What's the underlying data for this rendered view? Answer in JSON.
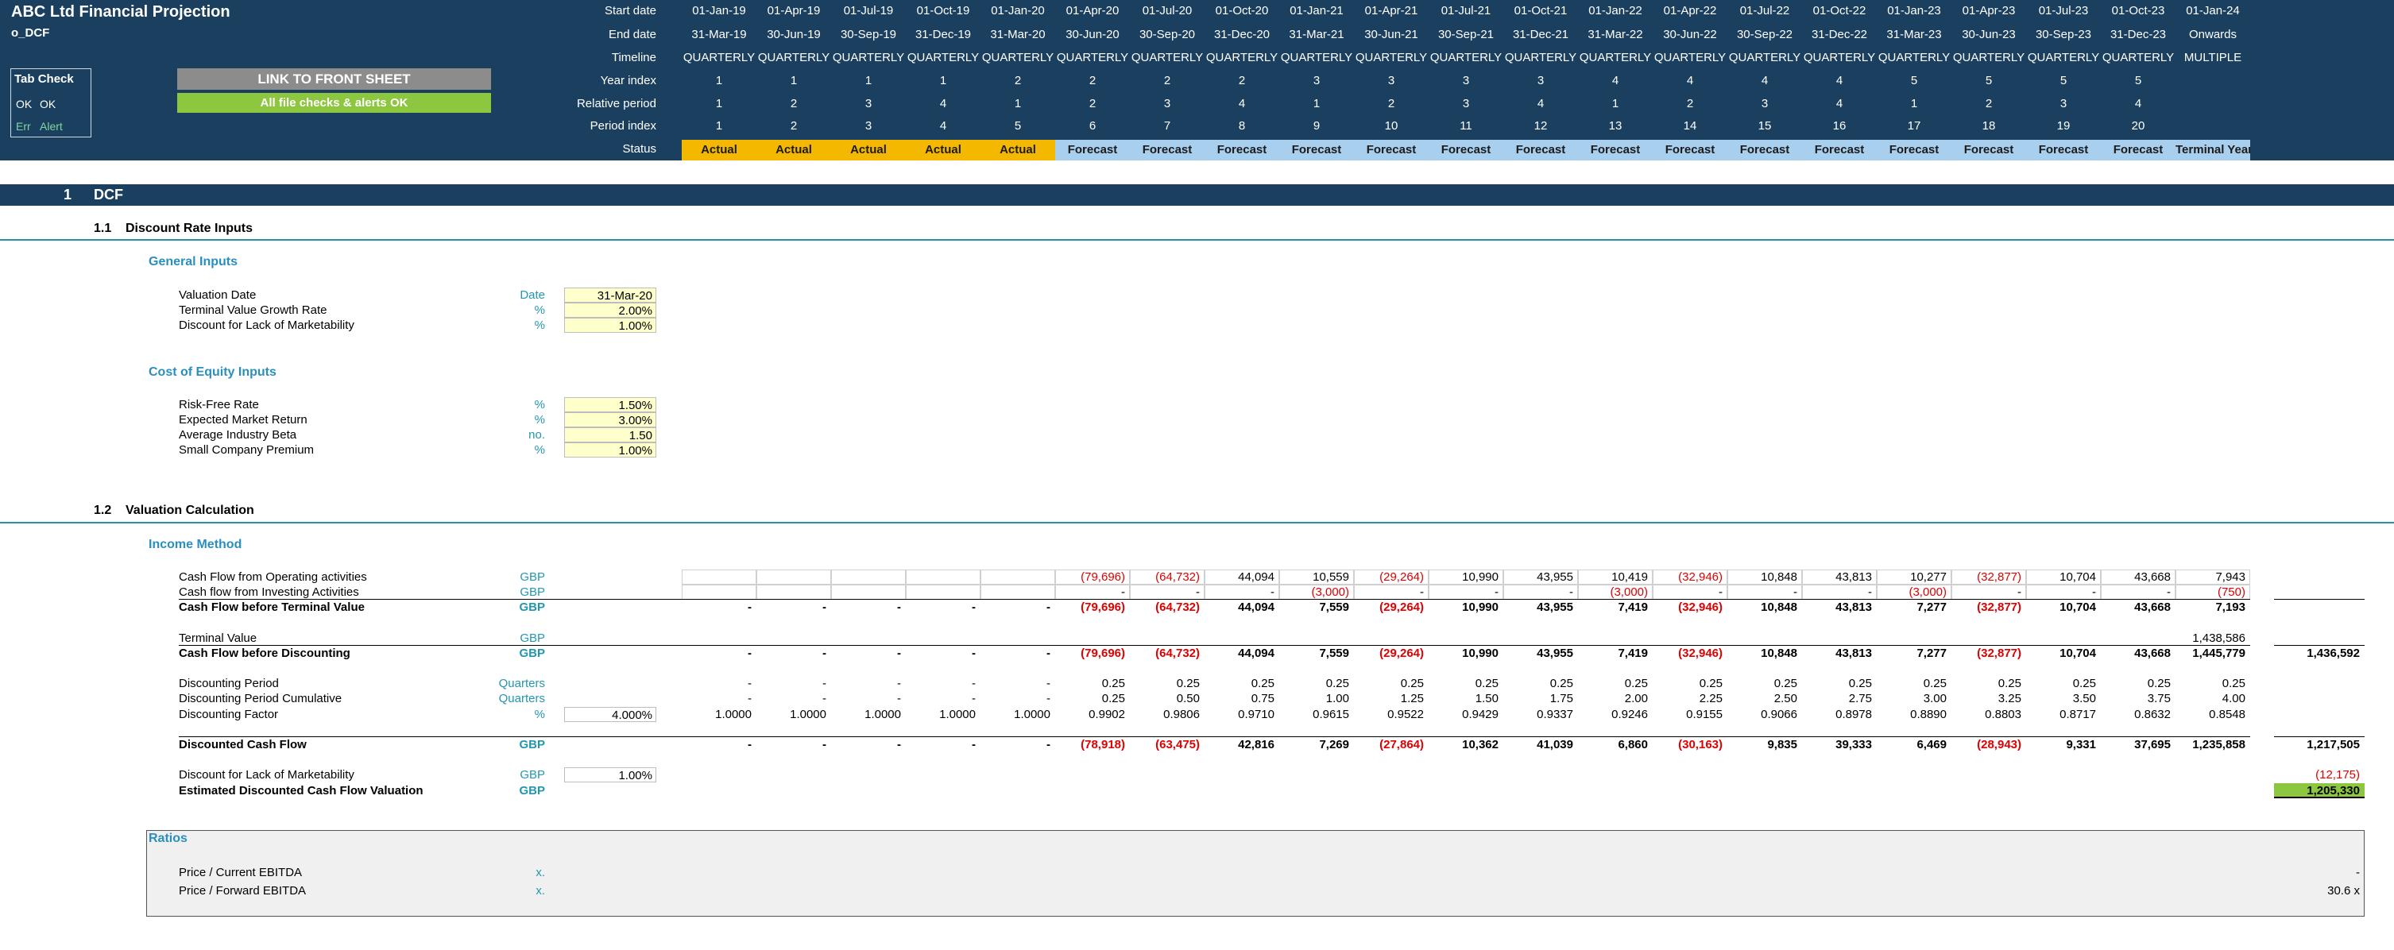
{
  "header": {
    "title": "ABC Ltd Financial Projection",
    "sheet": "o_DCF"
  },
  "tab_check": {
    "title": "Tab Check",
    "rows": [
      [
        "OK",
        "OK"
      ],
      [
        "Err",
        "Alert"
      ]
    ]
  },
  "buttons": {
    "link": "LINK TO FRONT SHEET",
    "status": "All file checks & alerts OK"
  },
  "timeline": [
    {
      "label": "Start date",
      "cells": [
        "01-Jan-19",
        "01-Apr-19",
        "01-Jul-19",
        "01-Oct-19",
        "01-Jan-20",
        "01-Apr-20",
        "01-Jul-20",
        "01-Oct-20",
        "01-Jan-21",
        "01-Apr-21",
        "01-Jul-21",
        "01-Oct-21",
        "01-Jan-22",
        "01-Apr-22",
        "01-Jul-22",
        "01-Oct-22",
        "01-Jan-23",
        "01-Apr-23",
        "01-Jul-23",
        "01-Oct-23",
        "01-Jan-24"
      ]
    },
    {
      "label": "End date",
      "cells": [
        "31-Mar-19",
        "30-Jun-19",
        "30-Sep-19",
        "31-Dec-19",
        "31-Mar-20",
        "30-Jun-20",
        "30-Sep-20",
        "31-Dec-20",
        "31-Mar-21",
        "30-Jun-21",
        "30-Sep-21",
        "31-Dec-21",
        "31-Mar-22",
        "30-Jun-22",
        "30-Sep-22",
        "31-Dec-22",
        "31-Mar-23",
        "30-Jun-23",
        "30-Sep-23",
        "31-Dec-23",
        "Onwards"
      ]
    },
    {
      "label": "Timeline",
      "cells": [
        "QUARTERLY",
        "QUARTERLY",
        "QUARTERLY",
        "QUARTERLY",
        "QUARTERLY",
        "QUARTERLY",
        "QUARTERLY",
        "QUARTERLY",
        "QUARTERLY",
        "QUARTERLY",
        "QUARTERLY",
        "QUARTERLY",
        "QUARTERLY",
        "QUARTERLY",
        "QUARTERLY",
        "QUARTERLY",
        "QUARTERLY",
        "QUARTERLY",
        "QUARTERLY",
        "QUARTERLY",
        "MULTIPLE"
      ]
    },
    {
      "label": "Year index",
      "cells": [
        "1",
        "1",
        "1",
        "1",
        "2",
        "2",
        "2",
        "2",
        "3",
        "3",
        "3",
        "3",
        "4",
        "4",
        "4",
        "4",
        "5",
        "5",
        "5",
        "5",
        null
      ]
    },
    {
      "label": "Relative period",
      "cells": [
        "1",
        "2",
        "3",
        "4",
        "1",
        "2",
        "3",
        "4",
        "1",
        "2",
        "3",
        "4",
        "1",
        "2",
        "3",
        "4",
        "1",
        "2",
        "3",
        "4",
        null
      ]
    },
    {
      "label": "Period index",
      "cells": [
        "1",
        "2",
        "3",
        "4",
        "5",
        "6",
        "7",
        "8",
        "9",
        "10",
        "11",
        "12",
        "13",
        "14",
        "15",
        "16",
        "17",
        "18",
        "19",
        "20",
        null
      ]
    },
    {
      "label": "Status",
      "cells": [
        "Actual",
        "Actual",
        "Actual",
        "Actual",
        "Actual",
        "Forecast",
        "Forecast",
        "Forecast",
        "Forecast",
        "Forecast",
        "Forecast",
        "Forecast",
        "Forecast",
        "Forecast",
        "Forecast",
        "Forecast",
        "Forecast",
        "Forecast",
        "Forecast",
        "Forecast",
        "Terminal Year"
      ]
    }
  ],
  "section": {
    "number": "1",
    "title": "DCF"
  },
  "discount_inputs": {
    "number": "1.1",
    "title": "Discount Rate Inputs",
    "groups": [
      {
        "title": "General Inputs",
        "rows": [
          {
            "label": "Valuation Date",
            "unit": "Date",
            "input": "31-Mar-20"
          },
          {
            "label": "Terminal Value Growth Rate",
            "unit": "%",
            "input": "2.00%"
          },
          {
            "label": "Discount for Lack of Marketability",
            "unit": "%",
            "input": "1.00%"
          }
        ]
      },
      {
        "title": "Cost of Equity Inputs",
        "rows": [
          {
            "label": "Risk-Free Rate",
            "unit": "%",
            "input": "1.50%"
          },
          {
            "label": "Expected Market Return",
            "unit": "%",
            "input": "3.00%"
          },
          {
            "label": "Average Industry Beta",
            "unit": "no.",
            "input": "1.50"
          },
          {
            "label": "Small Company Premium",
            "unit": "%",
            "input": "1.00%"
          }
        ]
      }
    ]
  },
  "valuation": {
    "number": "1.2",
    "title": "Valuation Calculation",
    "subtitle": "Income Method",
    "rows": [
      {
        "label": "Cash Flow from Operating activities",
        "unit": "GBP",
        "cells": [
          null,
          null,
          null,
          null,
          null,
          "(79,696)",
          "(64,732)",
          "44,094",
          "10,559",
          "(29,264)",
          "10,990",
          "43,955",
          "10,419",
          "(32,946)",
          "10,848",
          "43,813",
          "10,277",
          "(32,877)",
          "10,704",
          "43,668",
          "7,943"
        ]
      },
      {
        "label": "Cash flow from Investing Activities",
        "unit": "GBP",
        "cells": [
          null,
          null,
          null,
          null,
          null,
          "-",
          "-",
          "-",
          "(3,000)",
          "-",
          "-",
          "-",
          "(3,000)",
          "-",
          "-",
          "-",
          "(3,000)",
          "-",
          "-",
          "-",
          "(750)"
        ]
      },
      {
        "label": "Cash Flow before Terminal Value",
        "unit": "GBP",
        "bold": true,
        "cells": [
          "-",
          "-",
          "-",
          "-",
          "-",
          "(79,696)",
          "(64,732)",
          "44,094",
          "7,559",
          "(29,264)",
          "10,990",
          "43,955",
          "7,419",
          "(32,946)",
          "10,848",
          "43,813",
          "7,277",
          "(32,877)",
          "10,704",
          "43,668",
          "7,193"
        ]
      },
      {
        "label": "Terminal Value",
        "unit": "GBP",
        "cells": [
          null,
          null,
          null,
          null,
          null,
          null,
          null,
          null,
          null,
          null,
          null,
          null,
          null,
          null,
          null,
          null,
          null,
          null,
          null,
          null,
          "1,438,586"
        ]
      },
      {
        "label": "Cash Flow before Discounting",
        "unit": "GBP",
        "bold": true,
        "cells": [
          "-",
          "-",
          "-",
          "-",
          "-",
          "(79,696)",
          "(64,732)",
          "44,094",
          "7,559",
          "(29,264)",
          "10,990",
          "43,955",
          "7,419",
          "(32,946)",
          "10,848",
          "43,813",
          "7,277",
          "(32,877)",
          "10,704",
          "43,668",
          "1,445,779"
        ],
        "total": "1,436,592"
      },
      {
        "label": "Discounting Period",
        "unit": "Quarters",
        "cells": [
          "-",
          "-",
          "-",
          "-",
          "-",
          "0.25",
          "0.25",
          "0.25",
          "0.25",
          "0.25",
          "0.25",
          "0.25",
          "0.25",
          "0.25",
          "0.25",
          "0.25",
          "0.25",
          "0.25",
          "0.25",
          "0.25",
          "0.25"
        ]
      },
      {
        "label": "Discounting Period Cumulative",
        "unit": "Quarters",
        "cells": [
          "-",
          "-",
          "-",
          "-",
          "-",
          "0.25",
          "0.50",
          "0.75",
          "1.00",
          "1.25",
          "1.50",
          "1.75",
          "2.00",
          "2.25",
          "2.50",
          "2.75",
          "3.00",
          "3.25",
          "3.50",
          "3.75",
          "4.00"
        ]
      },
      {
        "label": "Discounting Factor",
        "unit": "%",
        "input": "4.000%",
        "cells": [
          "1.0000",
          "1.0000",
          "1.0000",
          "1.0000",
          "1.0000",
          "0.9902",
          "0.9806",
          "0.9710",
          "0.9615",
          "0.9522",
          "0.9429",
          "0.9337",
          "0.9246",
          "0.9155",
          "0.9066",
          "0.8978",
          "0.8890",
          "0.8803",
          "0.8717",
          "0.8632",
          "0.8548"
        ]
      },
      {
        "label": "Discounted Cash Flow",
        "unit": "GBP",
        "bold": true,
        "cells": [
          "-",
          "-",
          "-",
          "-",
          "-",
          "(78,918)",
          "(63,475)",
          "42,816",
          "7,269",
          "(27,864)",
          "10,362",
          "41,039",
          "6,860",
          "(30,163)",
          "9,835",
          "39,333",
          "6,469",
          "(28,943)",
          "9,331",
          "37,695",
          "1,235,858"
        ],
        "total": "1,217,505"
      },
      {
        "label": "Discount for Lack of Marketability",
        "unit": "GBP",
        "input": "1.00%",
        "total": "(12,175)"
      },
      {
        "label": "Estimated Discounted Cash Flow Valuation",
        "unit": "GBP",
        "bold": true,
        "total": "1,205,330"
      }
    ]
  },
  "ratios": {
    "title": "Ratios",
    "rows": [
      {
        "label": "Price / Current EBITDA",
        "unit": "x.",
        "total": "-"
      },
      {
        "label": "Price / Forward EBITDA",
        "unit": "x.",
        "total": "30.6 x"
      }
    ]
  }
}
